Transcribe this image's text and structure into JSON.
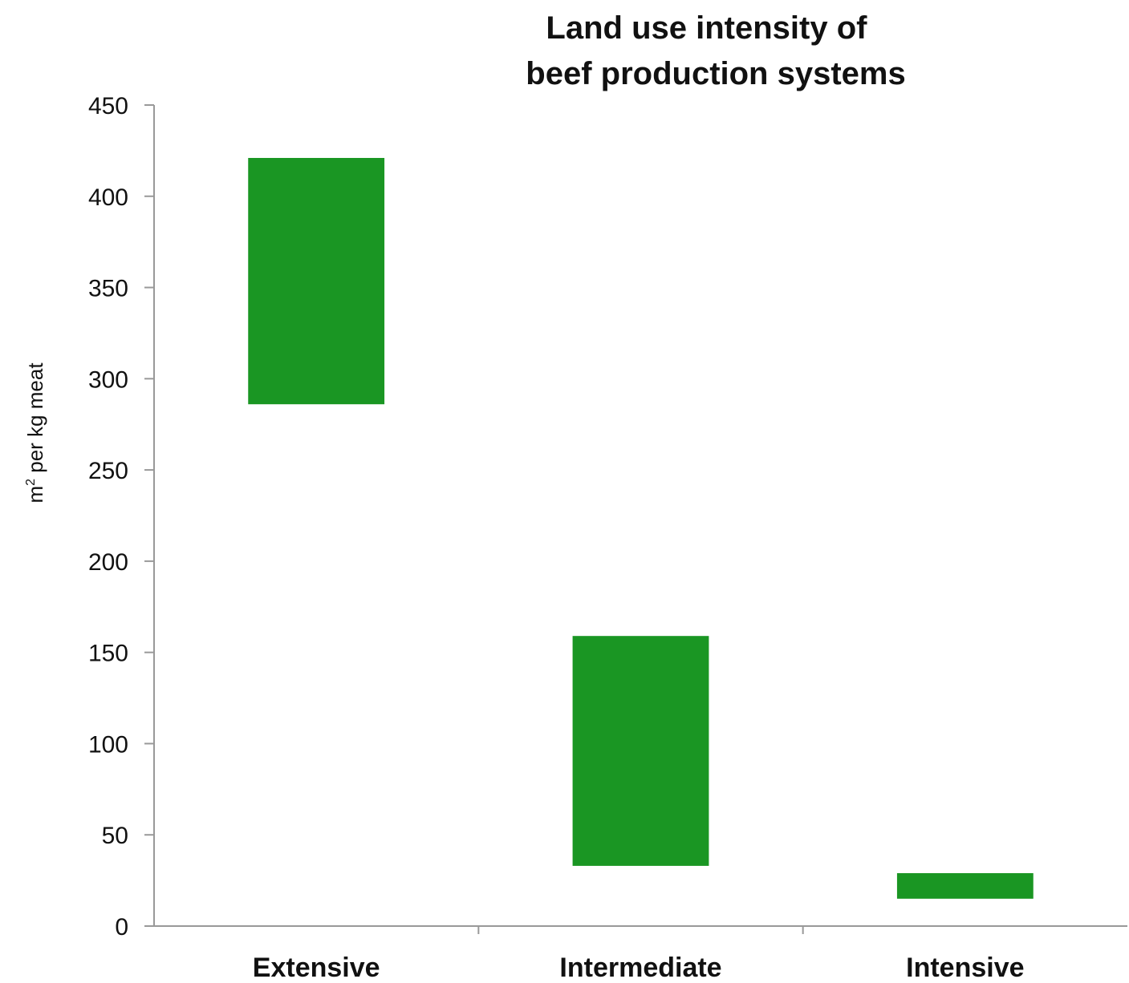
{
  "chart_data": {
    "type": "bar",
    "title_lines": [
      "Land use intensity of",
      "beef production systems"
    ],
    "ylabel_main": "m",
    "ylabel_sup": "2",
    "ylabel_rest": " per kg meat",
    "xlabel": "",
    "ylim": [
      0,
      450
    ],
    "yticks": [
      "0",
      "50",
      "100",
      "150",
      "200",
      "250",
      "300",
      "350",
      "400",
      "450"
    ],
    "categories": [
      "Extensive",
      "Intermediate",
      "Intensive"
    ],
    "ranges": [
      {
        "low": 286,
        "high": 421
      },
      {
        "low": 33,
        "high": 159
      },
      {
        "low": 15,
        "high": 29
      }
    ],
    "bar_color": "#1a9623",
    "grid": false,
    "legend": "none"
  }
}
